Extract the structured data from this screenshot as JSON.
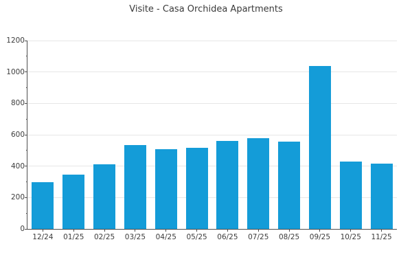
{
  "chart_data": {
    "type": "bar",
    "title": "Visite - Casa Orchidea Apartments",
    "categories": [
      "12/24",
      "01/25",
      "02/25",
      "03/25",
      "04/25",
      "05/25",
      "06/25",
      "07/25",
      "08/25",
      "09/25",
      "10/25",
      "11/25"
    ],
    "values": [
      300,
      345,
      410,
      535,
      510,
      515,
      560,
      580,
      555,
      1040,
      430,
      415
    ],
    "xlabel": "",
    "ylabel": "",
    "ylim": [
      0,
      1200
    ],
    "yticks": [
      0,
      200,
      400,
      600,
      800,
      1000,
      1200
    ],
    "yminorticks": [
      100,
      300,
      500,
      700,
      900,
      1100
    ],
    "grid": "horizontal-major",
    "legend": "none",
    "colors": {
      "bar": "#149cd8",
      "grid": "#e6e6e6",
      "axis": "#4d4d4d",
      "text": "#3c3c3c",
      "title_text": "#3a3a3a",
      "background": "#ffffff"
    }
  }
}
